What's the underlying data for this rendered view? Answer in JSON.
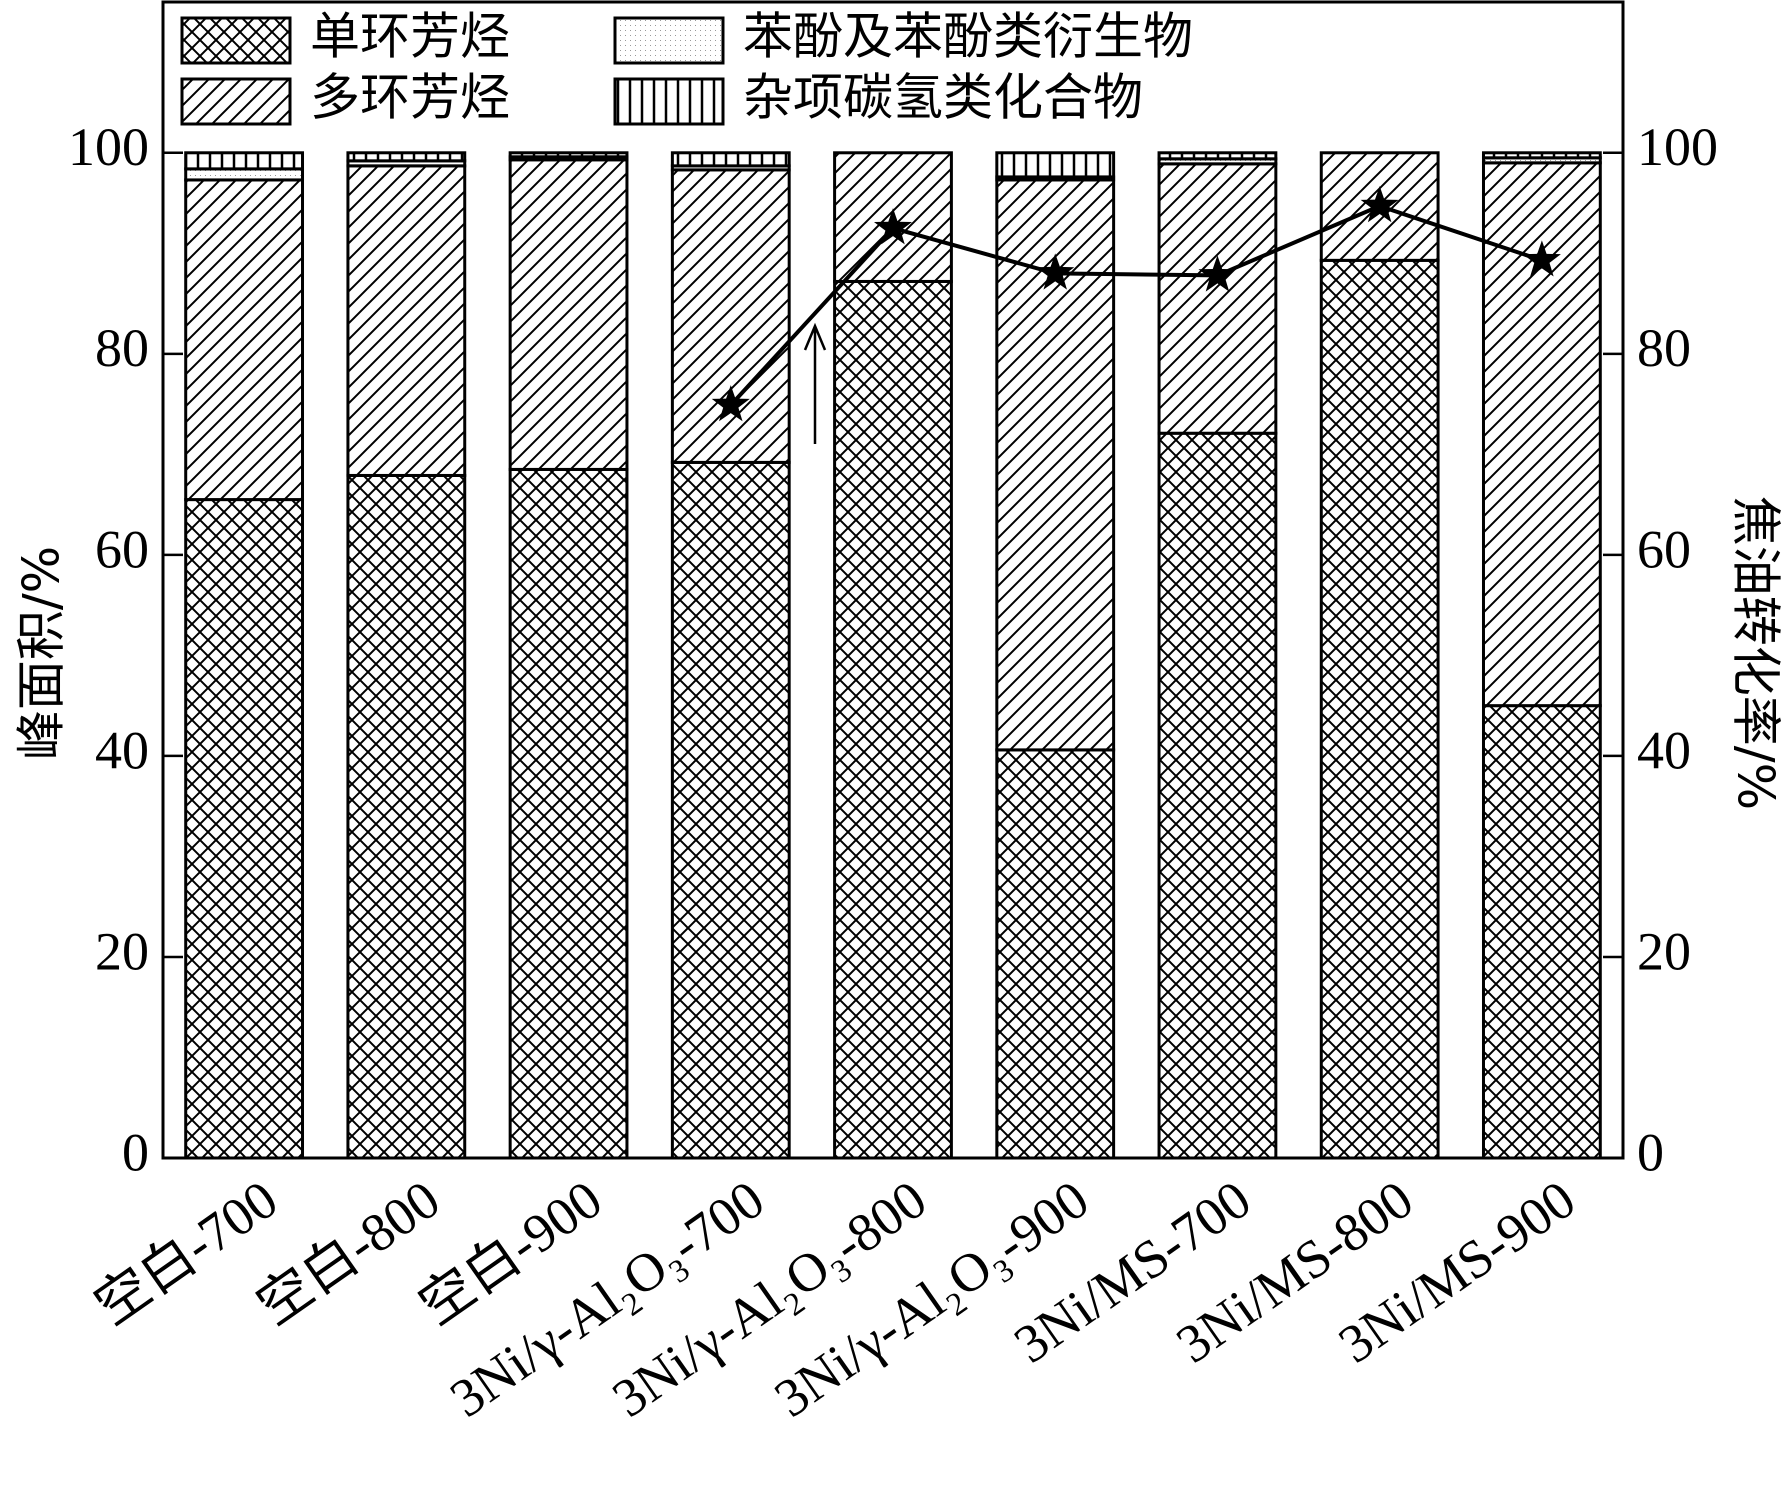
{
  "chart_data": {
    "type": "bar",
    "categories": [
      "空白-700",
      "空白-800",
      "空白-900",
      "3Ni/γ-Al₂O₃-700",
      "3Ni/γ-Al₂O₃-800",
      "3Ni/γ-Al₂O₃-900",
      "3Ni/MS-700",
      "3Ni/MS-800",
      "3Ni/MS-900"
    ],
    "series": [
      {
        "name": "单环芳烃",
        "pattern": "crosshatch",
        "values": [
          65.5,
          67.9,
          68.5,
          69.2,
          87.2,
          40.6,
          72.1,
          89.3,
          45.0
        ]
      },
      {
        "name": "多环芳烃",
        "pattern": "diagonal",
        "values": [
          31.8,
          30.8,
          30.8,
          29.1,
          12.8,
          56.7,
          26.8,
          10.7,
          54.0
        ]
      },
      {
        "name": "苯酚及苯酚类衍生物",
        "pattern": "dots",
        "values": [
          1.1,
          0.5,
          0.3,
          0.4,
          0,
          0.3,
          0.5,
          0,
          0.5
        ]
      },
      {
        "name": "杂项碳氢类化合物",
        "pattern": "vertical",
        "values": [
          1.6,
          0.8,
          0.4,
          1.3,
          0,
          2.4,
          0.6,
          0,
          0.5
        ]
      },
      {
        "type": "line",
        "axis": "y2",
        "color": "#000000",
        "marker": "star",
        "values": [
          null,
          null,
          null,
          74.9,
          92.5,
          88.0,
          87.8,
          94.7,
          89.3
        ]
      }
    ],
    "ylabel": "峰面积/%",
    "y2label": "焦油转化率/%",
    "ylim": [
      0,
      115
    ],
    "yticks": [
      0,
      20,
      40,
      60,
      80,
      100
    ],
    "y2lim": [
      0,
      115
    ],
    "y2ticks": [
      0,
      20,
      40,
      60,
      80,
      100
    ],
    "legend": "top-left"
  }
}
